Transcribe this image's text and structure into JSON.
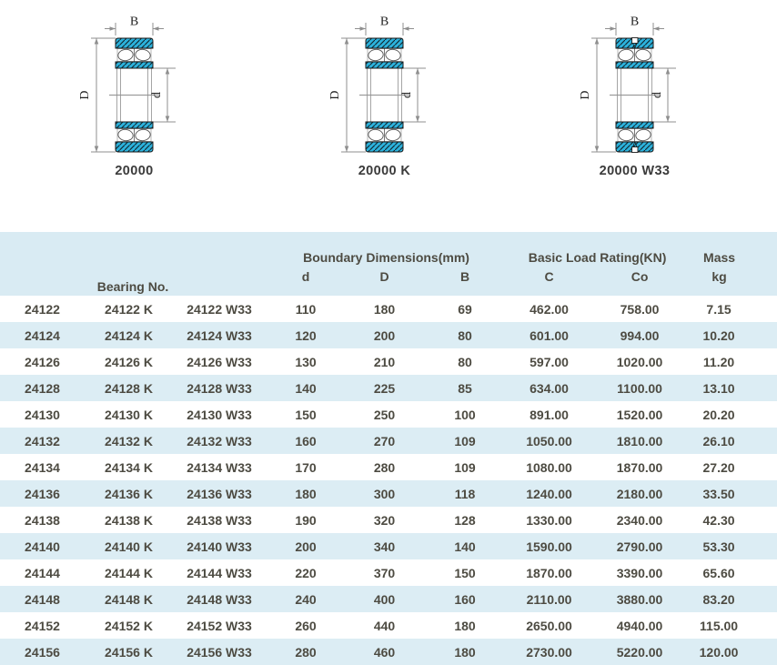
{
  "colors": {
    "light_blue": "#d9ebf3",
    "table_text": "#4d4b42",
    "bearing_cyan": "#2cb2dc",
    "dimension_gray": "#8f8f8f",
    "caption_text": "#3b3b3b"
  },
  "diagrams": {
    "dim_labels": {
      "width": "B",
      "outer_diameter": "D",
      "bore": "d"
    },
    "items": [
      {
        "caption": "20000"
      },
      {
        "caption": "20000 K"
      },
      {
        "caption": "20000 W33"
      }
    ]
  },
  "table": {
    "header": {
      "bearing_no": "Bearing No.",
      "boundary_dimensions": "Boundary Dimensions(mm)",
      "boundary_cols": [
        "d",
        "D",
        "B"
      ],
      "load_rating": "Basic Load Rating(KN)",
      "load_cols": [
        "C",
        "Co"
      ],
      "mass": "Mass",
      "mass_unit": "kg"
    },
    "rows": [
      [
        "24122",
        "24122 K",
        "24122 W33",
        "110",
        "180",
        "69",
        "462.00",
        "758.00",
        "7.15"
      ],
      [
        "24124",
        "24124 K",
        "24124 W33",
        "120",
        "200",
        "80",
        "601.00",
        "994.00",
        "10.20"
      ],
      [
        "24126",
        "24126 K",
        "24126 W33",
        "130",
        "210",
        "80",
        "597.00",
        "1020.00",
        "11.20"
      ],
      [
        "24128",
        "24128 K",
        "24128 W33",
        "140",
        "225",
        "85",
        "634.00",
        "1100.00",
        "13.10"
      ],
      [
        "24130",
        "24130 K",
        "24130 W33",
        "150",
        "250",
        "100",
        "891.00",
        "1520.00",
        "20.20"
      ],
      [
        "24132",
        "24132 K",
        "24132 W33",
        "160",
        "270",
        "109",
        "1050.00",
        "1810.00",
        "26.10"
      ],
      [
        "24134",
        "24134 K",
        "24134 W33",
        "170",
        "280",
        "109",
        "1080.00",
        "1870.00",
        "27.20"
      ],
      [
        "24136",
        "24136 K",
        "24136 W33",
        "180",
        "300",
        "118",
        "1240.00",
        "2180.00",
        "33.50"
      ],
      [
        "24138",
        "24138 K",
        "24138 W33",
        "190",
        "320",
        "128",
        "1330.00",
        "2340.00",
        "42.30"
      ],
      [
        "24140",
        "24140 K",
        "24140 W33",
        "200",
        "340",
        "140",
        "1590.00",
        "2790.00",
        "53.30"
      ],
      [
        "24144",
        "24144 K",
        "24144 W33",
        "220",
        "370",
        "150",
        "1870.00",
        "3390.00",
        "65.60"
      ],
      [
        "24148",
        "24148 K",
        "24148 W33",
        "240",
        "400",
        "160",
        "2110.00",
        "3880.00",
        "83.20"
      ],
      [
        "24152",
        "24152 K",
        "24152 W33",
        "260",
        "440",
        "180",
        "2650.00",
        "4940.00",
        "115.00"
      ],
      [
        "24156",
        "24156 K",
        "24156 W33",
        "280",
        "460",
        "180",
        "2730.00",
        "5220.00",
        "120.00"
      ]
    ]
  }
}
